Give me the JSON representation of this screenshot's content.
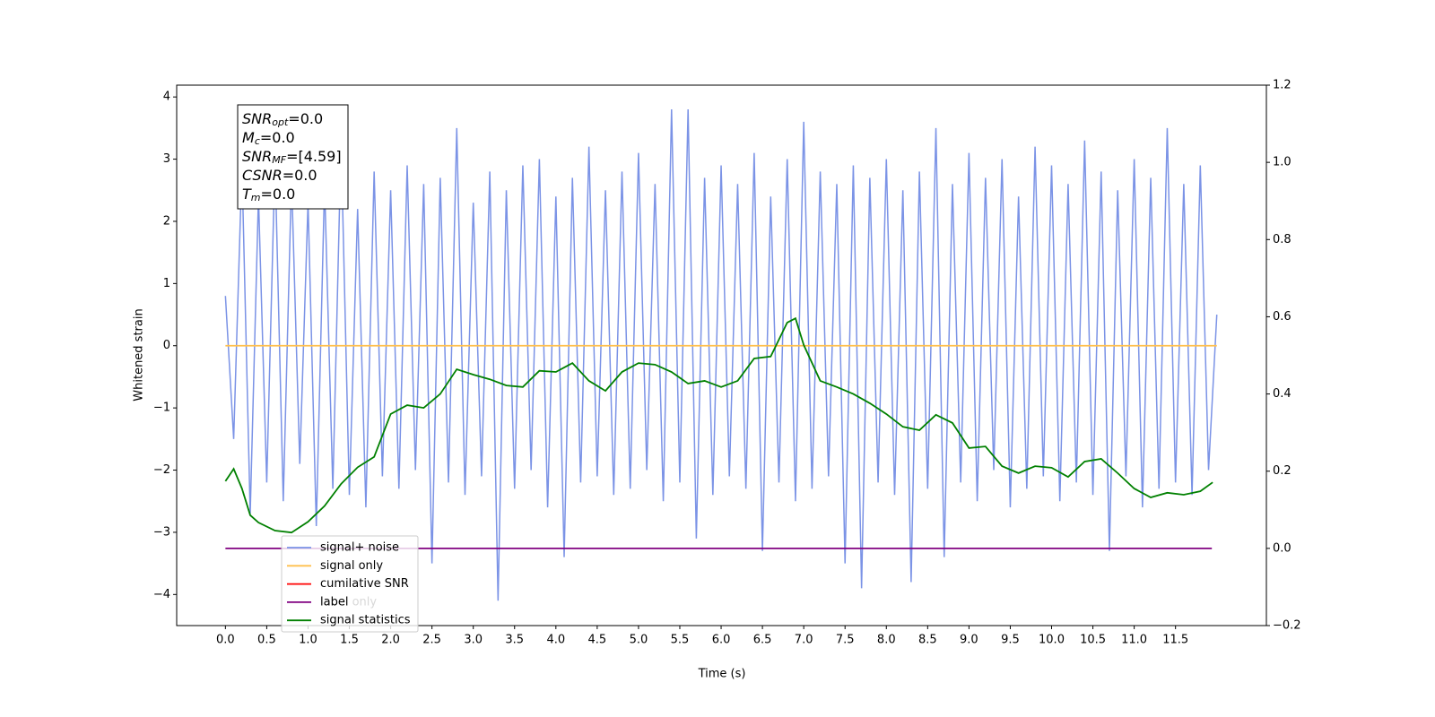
{
  "chart_data": {
    "type": "line",
    "xlabel": "Time (s)",
    "ylabel": "Whitened strain",
    "xlim": [
      -0.59,
      12.6
    ],
    "ylim": [
      -4.5,
      4.19
    ],
    "y2lim": [
      -0.2,
      1.2
    ],
    "xticks": [
      {
        "value": 0,
        "label": "0.0"
      },
      {
        "value": 0.5,
        "label": "0.5"
      },
      {
        "value": 1,
        "label": "1.0"
      },
      {
        "value": 1.5,
        "label": "1.5"
      },
      {
        "value": 2,
        "label": "2.0"
      },
      {
        "value": 2.5,
        "label": "2.5"
      },
      {
        "value": 3,
        "label": "3.0"
      },
      {
        "value": 3.5,
        "label": "3.5"
      },
      {
        "value": 4,
        "label": "4.0"
      },
      {
        "value": 4.5,
        "label": "4.5"
      },
      {
        "value": 5,
        "label": "5.0"
      },
      {
        "value": 5.5,
        "label": "5.5"
      },
      {
        "value": 6,
        "label": "6.0"
      },
      {
        "value": 6.5,
        "label": "6.5"
      },
      {
        "value": 7,
        "label": "7.0"
      },
      {
        "value": 7.5,
        "label": "7.5"
      },
      {
        "value": 8,
        "label": "8.0"
      },
      {
        "value": 8.5,
        "label": "8.5"
      },
      {
        "value": 9,
        "label": "9.0"
      },
      {
        "value": 9.5,
        "label": "9.5"
      },
      {
        "value": 10,
        "label": "10.0"
      },
      {
        "value": 10.5,
        "label": "10.5"
      },
      {
        "value": 11,
        "label": "11.0"
      },
      {
        "value": 11.5,
        "label": "11.5"
      }
    ],
    "yticks": [
      {
        "value": -4,
        "label": "−4"
      },
      {
        "value": -3,
        "label": "−3"
      },
      {
        "value": -2,
        "label": "−2"
      },
      {
        "value": -1,
        "label": "−1"
      },
      0,
      1,
      2,
      3,
      4
    ],
    "y2ticks": [
      {
        "value": -0.2,
        "label": "−0.2"
      },
      {
        "value": 0,
        "label": "0.0"
      },
      {
        "value": 0.2,
        "label": "0.2"
      },
      {
        "value": 0.4,
        "label": "0.4"
      },
      {
        "value": 0.6,
        "label": "0.6"
      },
      {
        "value": 0.8,
        "label": "0.8"
      },
      {
        "value": 1,
        "label": "1.0"
      },
      {
        "value": 1.2,
        "label": "1.2"
      }
    ],
    "grid": false,
    "legend": "lower left",
    "legend_overlay_text": "label only",
    "annotation": [
      {
        "symbol": "SNR",
        "sub": "opt",
        "text": "=0.0"
      },
      {
        "symbol": "M",
        "sub": "c",
        "text": "=0.0"
      },
      {
        "symbol": "SNR",
        "sub": "MF",
        "text": "=[4.59]"
      },
      {
        "symbol": "CSNR",
        "sub": null,
        "text": "=0.0"
      },
      {
        "symbol": "T",
        "sub": "m",
        "text": "=0.0"
      }
    ],
    "series": [
      {
        "name": "signal+ noise",
        "color": "#7b93e6",
        "x": [
          0,
          0.1,
          0.2,
          0.3,
          0.4,
          0.5,
          0.6,
          0.7,
          0.8,
          0.9,
          1,
          1.1,
          1.2,
          1.3,
          1.4,
          1.5,
          1.6,
          1.7,
          1.8,
          1.9,
          2,
          2.1,
          2.2,
          2.3,
          2.4,
          2.5,
          2.6,
          2.7,
          2.8,
          2.9,
          3,
          3.1,
          3.2,
          3.3,
          3.4,
          3.5,
          3.6,
          3.7,
          3.8,
          3.9,
          4,
          4.1,
          4.2,
          4.3,
          4.4,
          4.5,
          4.6,
          4.7,
          4.8,
          4.9,
          5,
          5.1,
          5.2,
          5.3,
          5.4,
          5.5,
          5.6,
          5.7,
          5.8,
          5.9,
          6,
          6.1,
          6.2,
          6.3,
          6.4,
          6.5,
          6.6,
          6.7,
          6.8,
          6.9,
          7,
          7.1,
          7.2,
          7.3,
          7.4,
          7.5,
          7.6,
          7.7,
          7.8,
          7.9,
          8,
          8.1,
          8.2,
          8.3,
          8.4,
          8.5,
          8.6,
          8.7,
          8.8,
          8.9,
          9,
          9.1,
          9.2,
          9.3,
          9.4,
          9.5,
          9.6,
          9.7,
          9.8,
          9.9,
          10,
          10.1,
          10.2,
          10.3,
          10.4,
          10.5,
          10.6,
          10.7,
          10.8,
          10.9,
          11,
          11.1,
          11.2,
          11.3,
          11.4,
          11.5,
          11.6,
          11.7,
          11.8,
          11.9,
          12
        ],
        "values": [
          0.8,
          -1.5,
          2.9,
          -2.7,
          2.4,
          -2.2,
          3.0,
          -2.5,
          2.7,
          -1.9,
          2.3,
          -2.9,
          2.6,
          -2.3,
          3.3,
          -2.4,
          2.2,
          -2.6,
          2.8,
          -2.1,
          2.5,
          -2.3,
          2.9,
          -2.0,
          2.6,
          -3.5,
          2.7,
          -2.2,
          3.5,
          -2.4,
          2.3,
          -2.1,
          2.8,
          -4.1,
          2.5,
          -2.3,
          2.9,
          -2.0,
          3.0,
          -2.6,
          2.4,
          -3.4,
          2.7,
          -2.2,
          3.2,
          -2.1,
          2.5,
          -2.4,
          2.8,
          -2.3,
          3.1,
          -2.0,
          2.6,
          -2.5,
          3.8,
          -2.2,
          3.8,
          -3.1,
          2.7,
          -2.4,
          2.9,
          -2.1,
          2.6,
          -2.3,
          3.1,
          -3.3,
          2.4,
          -2.2,
          3.0,
          -2.5,
          3.6,
          -2.3,
          2.8,
          -2.1,
          2.6,
          -3.5,
          2.9,
          -3.9,
          2.7,
          -2.2,
          3.0,
          -2.4,
          2.5,
          -3.8,
          2.8,
          -2.3,
          3.5,
          -3.4,
          2.6,
          -2.2,
          3.1,
          -2.5,
          2.7,
          -2.0,
          3.0,
          -2.6,
          2.4,
          -2.3,
          3.2,
          -2.1,
          2.9,
          -2.5,
          2.6,
          -2.2,
          3.3,
          -2.4,
          2.8,
          -3.3,
          2.5,
          -2.1,
          3.0,
          -2.6,
          2.7,
          -2.3,
          3.5,
          -2.2,
          2.6,
          -2.4,
          2.9,
          -2.0,
          0.5
        ]
      },
      {
        "name": "signal only",
        "color": "#ffc04d",
        "x": [
          0,
          12
        ],
        "values": [
          0,
          0
        ]
      },
      {
        "name": "cumilative SNR",
        "color": "#ff0000",
        "x": [],
        "values": []
      },
      {
        "name": "label",
        "color": "#800080",
        "axis": "y2",
        "x": [
          0,
          11.94
        ],
        "values": [
          0,
          0
        ]
      },
      {
        "name": "signal statistics",
        "color": "#008000",
        "axis": "y2",
        "x": [
          0,
          0.1,
          0.2,
          0.3,
          0.4,
          0.6,
          0.8,
          1,
          1.2,
          1.4,
          1.6,
          1.8,
          2,
          2.2,
          2.4,
          2.6,
          2.8,
          3,
          3.2,
          3.4,
          3.6,
          3.8,
          4,
          4.2,
          4.4,
          4.6,
          4.8,
          5,
          5.2,
          5.4,
          5.6,
          5.8,
          6,
          6.2,
          6.4,
          6.6,
          6.8,
          6.9,
          7,
          7.2,
          7.4,
          7.6,
          7.8,
          8,
          8.2,
          8.4,
          8.6,
          8.8,
          9,
          9.2,
          9.4,
          9.6,
          9.8,
          10,
          10.2,
          10.4,
          10.6,
          10.8,
          11,
          11.2,
          11.4,
          11.6,
          11.8,
          11.95
        ],
        "values": [
          0.174,
          0.206,
          0.155,
          0.086,
          0.067,
          0.046,
          0.041,
          0.069,
          0.11,
          0.167,
          0.21,
          0.237,
          0.348,
          0.371,
          0.364,
          0.4,
          0.464,
          0.45,
          0.438,
          0.422,
          0.418,
          0.46,
          0.457,
          0.48,
          0.434,
          0.408,
          0.457,
          0.48,
          0.476,
          0.457,
          0.427,
          0.434,
          0.418,
          0.434,
          0.492,
          0.497,
          0.585,
          0.596,
          0.527,
          0.434,
          0.418,
          0.4,
          0.376,
          0.348,
          0.315,
          0.306,
          0.346,
          0.325,
          0.26,
          0.264,
          0.213,
          0.195,
          0.213,
          0.209,
          0.185,
          0.225,
          0.232,
          0.195,
          0.155,
          0.132,
          0.144,
          0.139,
          0.148,
          0.171
        ]
      }
    ]
  }
}
